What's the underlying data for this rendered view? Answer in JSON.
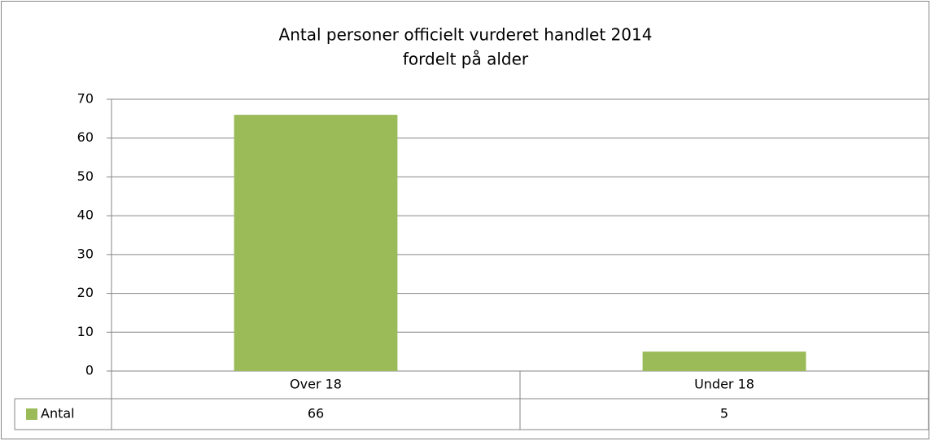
{
  "chart_data": {
    "type": "bar",
    "title": [
      "Antal personer officielt vurderet handlet 2014",
      "fordelt på alder"
    ],
    "categories": [
      "Over 18",
      "Under 18"
    ],
    "series": [
      {
        "name": "Antal",
        "color": "#9bbb59",
        "values": [
          66,
          5
        ]
      }
    ],
    "ylim": [
      0,
      70
    ],
    "yticks": [
      0,
      10,
      20,
      30,
      40,
      50,
      60,
      70
    ],
    "grid": true,
    "data_table": true
  }
}
